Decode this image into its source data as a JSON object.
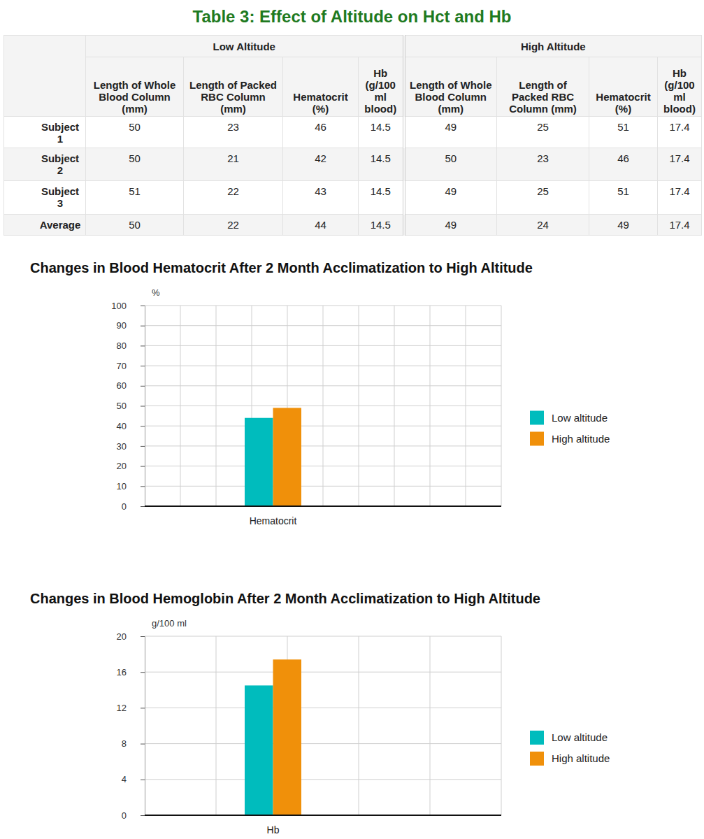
{
  "table": {
    "title": "Table 3: Effect of Altitude on Hct and Hb",
    "groups": [
      "Low Altitude",
      "High Altitude"
    ],
    "columns": [
      "Length of Whole Blood Column (mm)",
      "Length of Packed RBC Column (mm)",
      "Hematocrit (%)",
      "Hb (g/100 ml blood)",
      "Length of Whole Blood Column (mm)",
      "Length of Packed RBC Column (mm)",
      "Hematocrit (%)",
      "Hb (g/100 ml blood)"
    ],
    "rows": [
      {
        "label": "Subject 1",
        "values": [
          50,
          23,
          46,
          14.5,
          49,
          25,
          51,
          17.4
        ]
      },
      {
        "label": "Subject 2",
        "values": [
          50,
          21,
          42,
          14.5,
          50,
          23,
          46,
          17.4
        ]
      },
      {
        "label": "Subject 3",
        "values": [
          51,
          22,
          43,
          14.5,
          49,
          25,
          51,
          17.4
        ]
      },
      {
        "label": "Average",
        "values": [
          50,
          22,
          44,
          14.5,
          49,
          24,
          49,
          17.4
        ]
      }
    ]
  },
  "chart_data": [
    {
      "type": "bar",
      "title": "Changes in Blood Hematocrit After 2 Month Acclimatization to High Altitude",
      "ylabel": "%",
      "categories": [
        "Hematocrit"
      ],
      "series": [
        {
          "name": "Low altitude",
          "color": "#00bcbd",
          "values": [
            44
          ]
        },
        {
          "name": "High altitude",
          "color": "#f0900a",
          "values": [
            49
          ]
        }
      ],
      "ylim": [
        0,
        100
      ],
      "yticks": [
        0,
        10,
        20,
        30,
        40,
        50,
        60,
        70,
        80,
        90,
        100
      ],
      "grid": true,
      "legend": "right"
    },
    {
      "type": "bar",
      "title": "Changes in Blood Hemoglobin After 2 Month Acclimatization to High Altitude",
      "ylabel": "g/100 ml",
      "categories": [
        "Hb"
      ],
      "series": [
        {
          "name": "Low altitude",
          "color": "#00bcbd",
          "values": [
            14.5
          ]
        },
        {
          "name": "High altitude",
          "color": "#f0900a",
          "values": [
            17.4
          ]
        }
      ],
      "ylim": [
        0,
        20
      ],
      "yticks": [
        0,
        4,
        8,
        12,
        16,
        20
      ],
      "grid": true,
      "legend": "right"
    }
  ]
}
